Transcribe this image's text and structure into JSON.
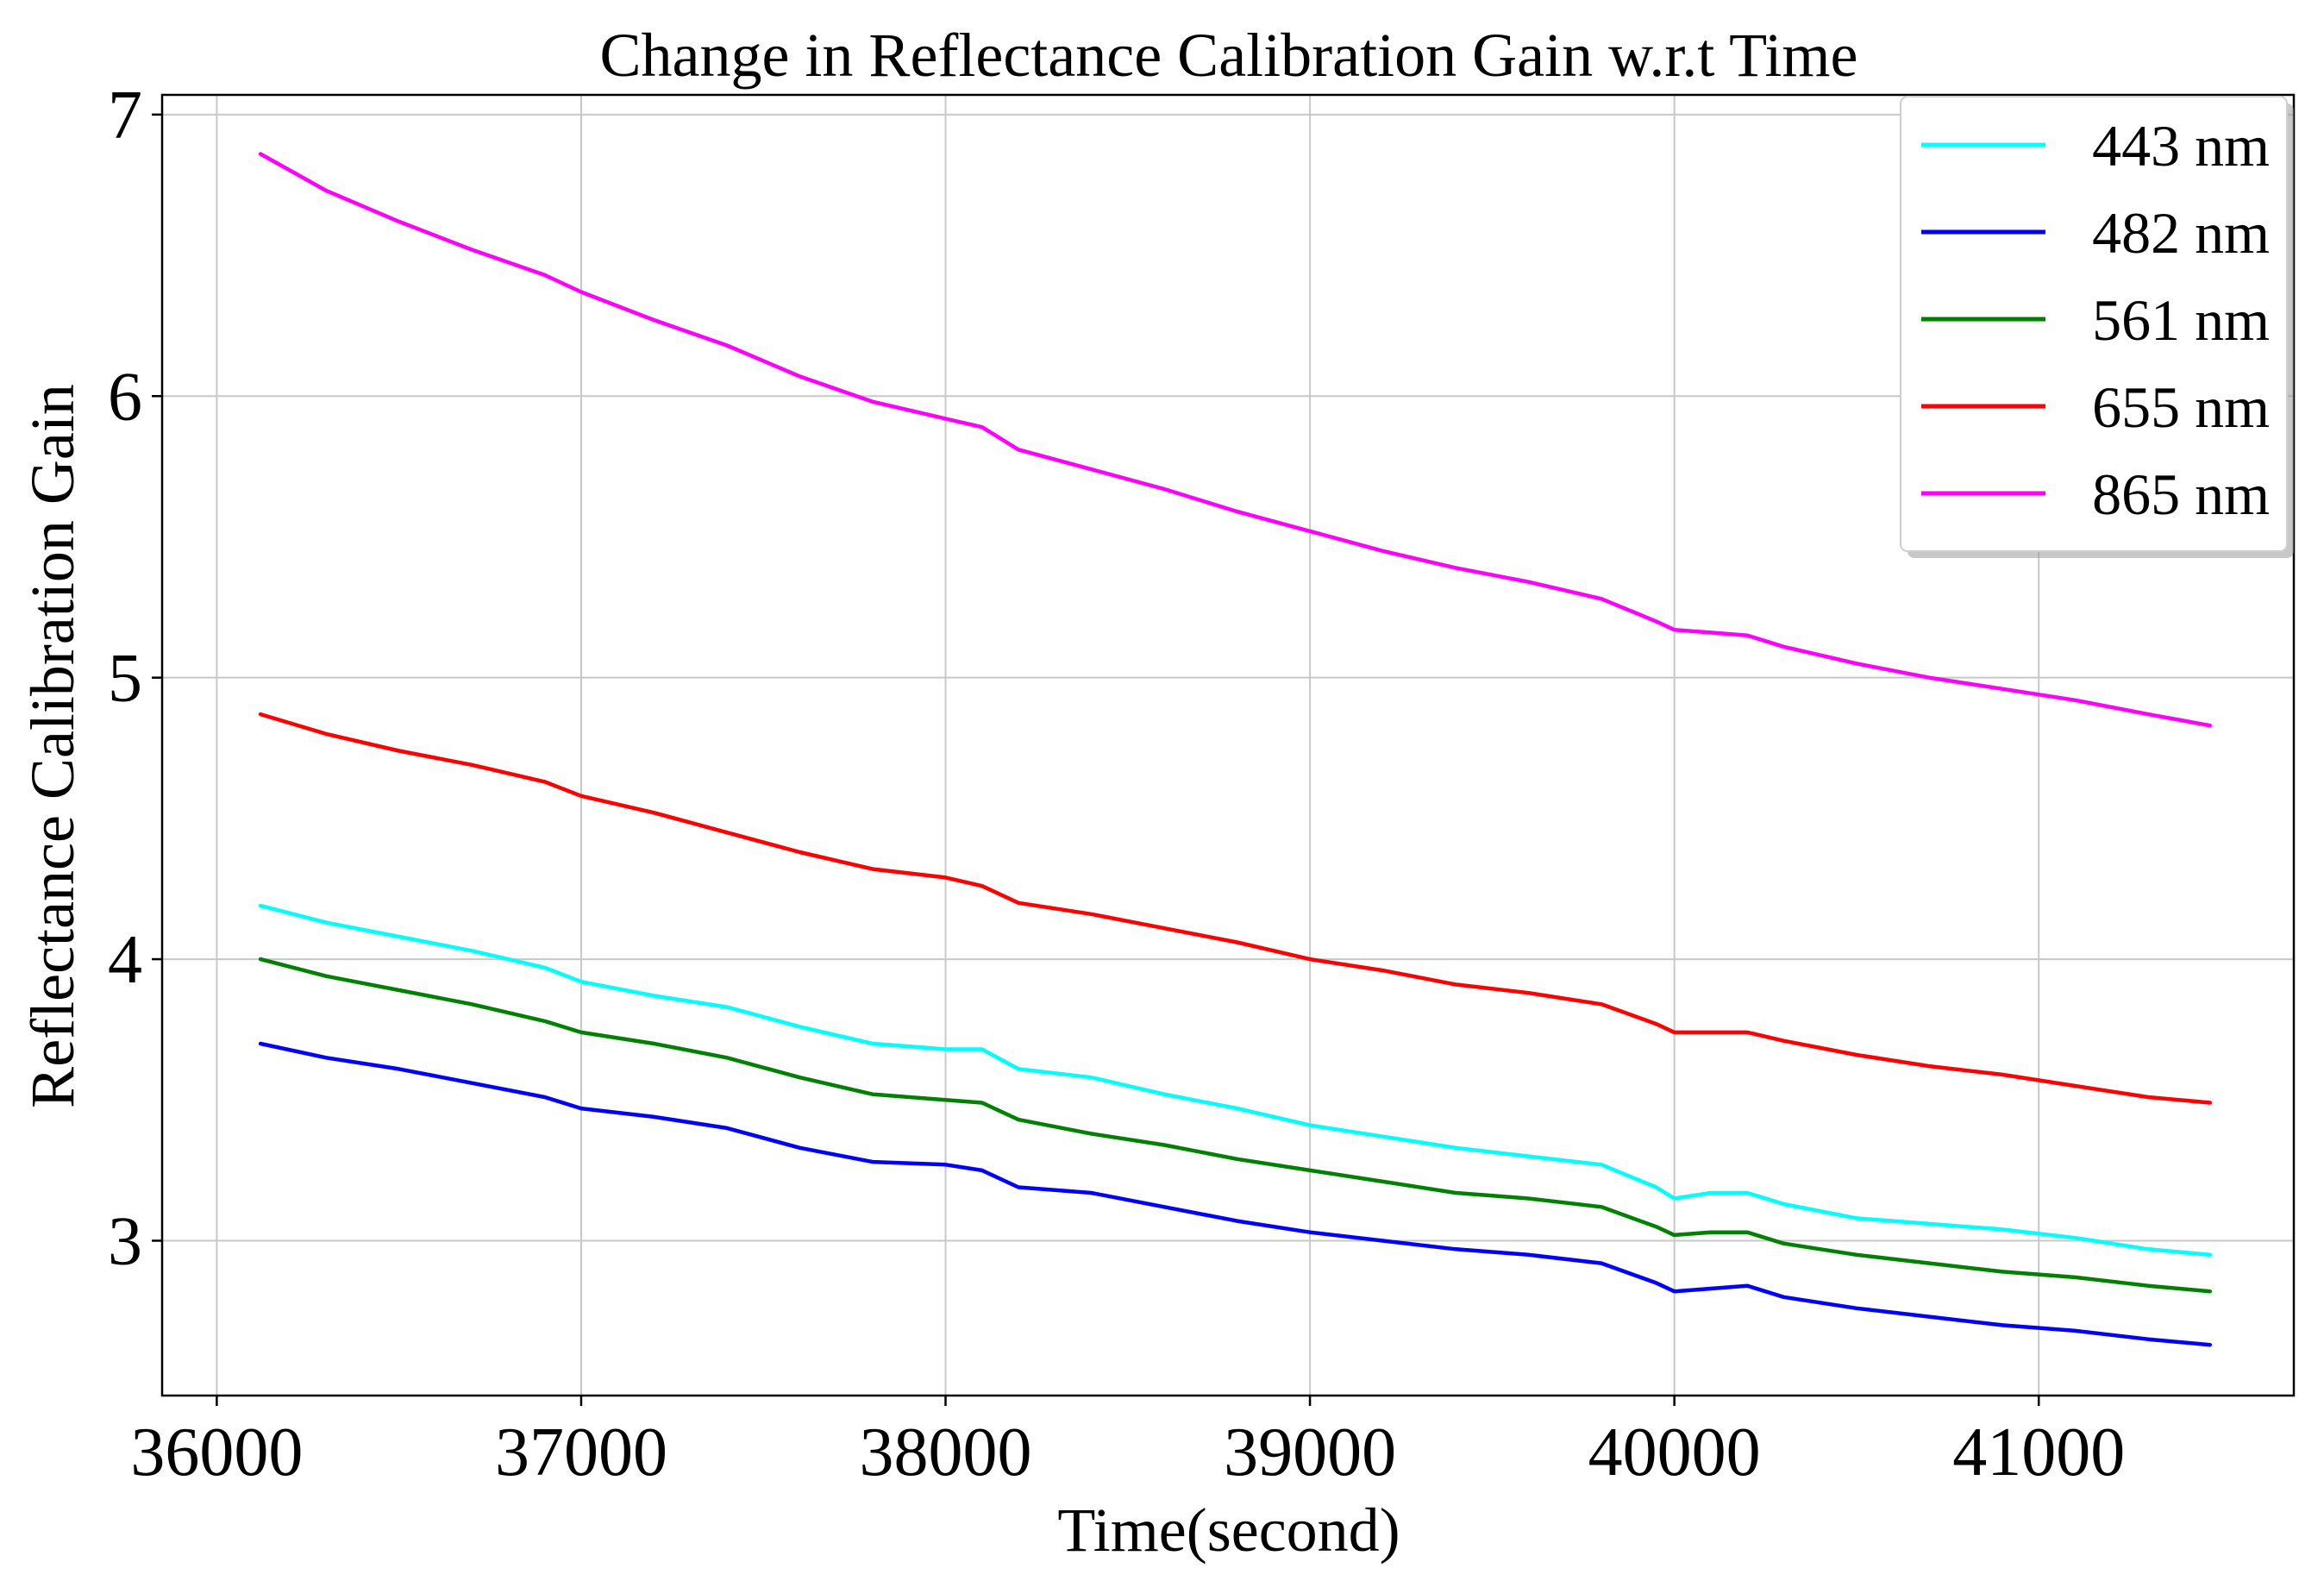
{
  "chart_data": {
    "type": "line",
    "title": "Change in Reflectance Calibration Gain w.r.t Time",
    "xlabel": "Time(second)",
    "ylabel": "Reflectance Calibration Gain",
    "xlim": [
      35850,
      41700
    ],
    "ylim": [
      2.45,
      7.07
    ],
    "xticks": [
      36000,
      37000,
      38000,
      39000,
      40000,
      41000
    ],
    "yticks": [
      3,
      4,
      5,
      6,
      7
    ],
    "grid": true,
    "legend_position": "top-right",
    "series": [
      {
        "name": "443 nm",
        "color": "#00ffff",
        "x": [
          36120,
          36300,
          36500,
          36700,
          36900,
          37000,
          37200,
          37400,
          37600,
          37800,
          38000,
          38100,
          38200,
          38400,
          38600,
          38800,
          39000,
          39200,
          39400,
          39600,
          39800,
          39950,
          40000,
          40100,
          40200,
          40300,
          40500,
          40700,
          40900,
          41100,
          41300,
          41470
        ],
        "values": [
          4.19,
          4.13,
          4.08,
          4.03,
          3.97,
          3.92,
          3.87,
          3.83,
          3.76,
          3.7,
          3.68,
          3.68,
          3.61,
          3.58,
          3.52,
          3.47,
          3.41,
          3.37,
          3.33,
          3.3,
          3.27,
          3.19,
          3.15,
          3.17,
          3.17,
          3.13,
          3.08,
          3.06,
          3.04,
          3.01,
          2.97,
          2.95
        ]
      },
      {
        "name": "482 nm",
        "color": "#0000ff",
        "x": [
          36120,
          36300,
          36500,
          36700,
          36900,
          37000,
          37200,
          37400,
          37600,
          37800,
          38000,
          38100,
          38200,
          38400,
          38600,
          38800,
          39000,
          39200,
          39400,
          39600,
          39800,
          39950,
          40000,
          40100,
          40200,
          40300,
          40500,
          40700,
          40900,
          41100,
          41300,
          41470
        ],
        "values": [
          3.7,
          3.65,
          3.61,
          3.56,
          3.51,
          3.47,
          3.44,
          3.4,
          3.33,
          3.28,
          3.27,
          3.25,
          3.19,
          3.17,
          3.12,
          3.07,
          3.03,
          3.0,
          2.97,
          2.95,
          2.92,
          2.85,
          2.82,
          2.83,
          2.84,
          2.8,
          2.76,
          2.73,
          2.7,
          2.68,
          2.65,
          2.63
        ]
      },
      {
        "name": "561 nm",
        "color": "#008000",
        "x": [
          36120,
          36300,
          36500,
          36700,
          36900,
          37000,
          37200,
          37400,
          37600,
          37800,
          38000,
          38100,
          38200,
          38400,
          38600,
          38800,
          39000,
          39200,
          39400,
          39600,
          39800,
          39950,
          40000,
          40100,
          40200,
          40300,
          40500,
          40700,
          40900,
          41100,
          41300,
          41470
        ],
        "values": [
          4.0,
          3.94,
          3.89,
          3.84,
          3.78,
          3.74,
          3.7,
          3.65,
          3.58,
          3.52,
          3.5,
          3.49,
          3.43,
          3.38,
          3.34,
          3.29,
          3.25,
          3.21,
          3.17,
          3.15,
          3.12,
          3.05,
          3.02,
          3.03,
          3.03,
          2.99,
          2.95,
          2.92,
          2.89,
          2.87,
          2.84,
          2.82
        ]
      },
      {
        "name": "655 nm",
        "color": "#ff0000",
        "x": [
          36120,
          36300,
          36500,
          36700,
          36900,
          37000,
          37200,
          37400,
          37600,
          37800,
          38000,
          38100,
          38200,
          38400,
          38600,
          38800,
          39000,
          39200,
          39400,
          39600,
          39800,
          39950,
          40000,
          40100,
          40200,
          40300,
          40500,
          40700,
          40900,
          41100,
          41300,
          41470
        ],
        "values": [
          4.87,
          4.8,
          4.74,
          4.69,
          4.63,
          4.58,
          4.52,
          4.45,
          4.38,
          4.32,
          4.29,
          4.26,
          4.2,
          4.16,
          4.11,
          4.06,
          4.0,
          3.96,
          3.91,
          3.88,
          3.84,
          3.77,
          3.74,
          3.74,
          3.74,
          3.71,
          3.66,
          3.62,
          3.59,
          3.55,
          3.51,
          3.49
        ]
      },
      {
        "name": "865 nm",
        "color": "#ff00ff",
        "x": [
          36120,
          36300,
          36500,
          36700,
          36900,
          37000,
          37200,
          37400,
          37600,
          37800,
          38000,
          38100,
          38200,
          38400,
          38600,
          38800,
          39000,
          39200,
          39400,
          39600,
          39800,
          39950,
          40000,
          40100,
          40200,
          40300,
          40500,
          40700,
          40900,
          41100,
          41300,
          41470
        ],
        "values": [
          6.86,
          6.73,
          6.62,
          6.52,
          6.43,
          6.37,
          6.27,
          6.18,
          6.07,
          5.98,
          5.92,
          5.89,
          5.81,
          5.74,
          5.67,
          5.59,
          5.52,
          5.45,
          5.39,
          5.34,
          5.28,
          5.2,
          5.17,
          5.16,
          5.15,
          5.11,
          5.05,
          5.0,
          4.96,
          4.92,
          4.87,
          4.83
        ]
      }
    ]
  }
}
